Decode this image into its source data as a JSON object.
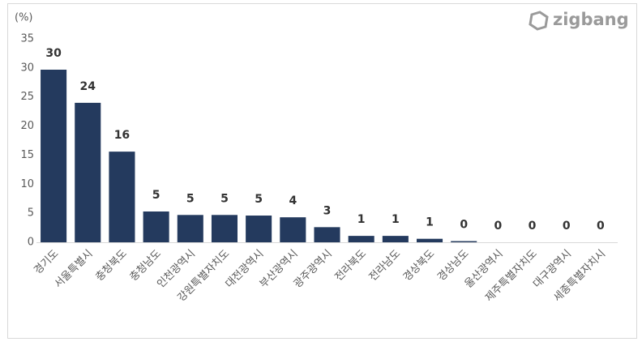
{
  "chart_data": {
    "type": "bar",
    "unit_label": "(%)",
    "logo": "zigbang",
    "categories": [
      "경기도",
      "서울특별시",
      "충청북도",
      "충청남도",
      "인천광역시",
      "강원특별자치도",
      "대전광역시",
      "부산광역시",
      "광주광역시",
      "전라북도",
      "전라남도",
      "경상북도",
      "경상남도",
      "울산광역시",
      "제주특별자치도",
      "대구광역시",
      "세종특별자치시"
    ],
    "values": [
      29.7,
      24.0,
      15.6,
      5.3,
      4.7,
      4.7,
      4.6,
      4.3,
      2.6,
      1.1,
      1.1,
      0.6,
      0.2,
      0,
      0,
      0,
      0
    ],
    "value_labels": [
      "30",
      "24",
      "16",
      "5",
      "5",
      "5",
      "5",
      "4",
      "3",
      "1",
      "1",
      "1",
      "0",
      "0",
      "0",
      "0",
      "0"
    ],
    "color": "#243a5e",
    "ylim": [
      0,
      35
    ],
    "yticks": [
      0,
      5,
      10,
      15,
      20,
      25,
      30,
      35
    ],
    "grid": false
  }
}
